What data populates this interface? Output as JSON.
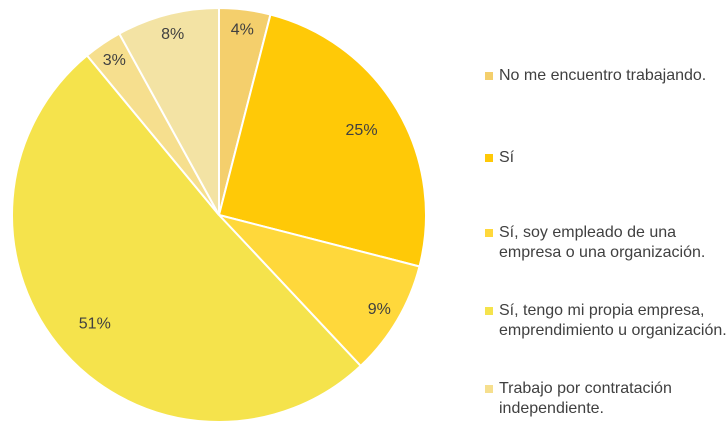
{
  "chart_data": {
    "type": "pie",
    "categories": [
      "No me encuentro trabajando.",
      "Sí",
      "Sí, soy empleado de una empresa o una organización.",
      "Sí, tengo mi propia empresa, emprendimiento u organización.",
      "Trabajo por contratación independiente.",
      null
    ],
    "values": [
      4,
      25,
      9,
      51,
      3,
      8
    ],
    "value_labels": [
      "4%",
      "25%",
      "9%",
      "51%",
      "3%",
      "8%"
    ],
    "colors": [
      "#F4CF6C",
      "#FFC907",
      "#FFD83B",
      "#F5E34C",
      "#F6DF8E",
      "#F3E3A4"
    ],
    "legend": "right"
  }
}
